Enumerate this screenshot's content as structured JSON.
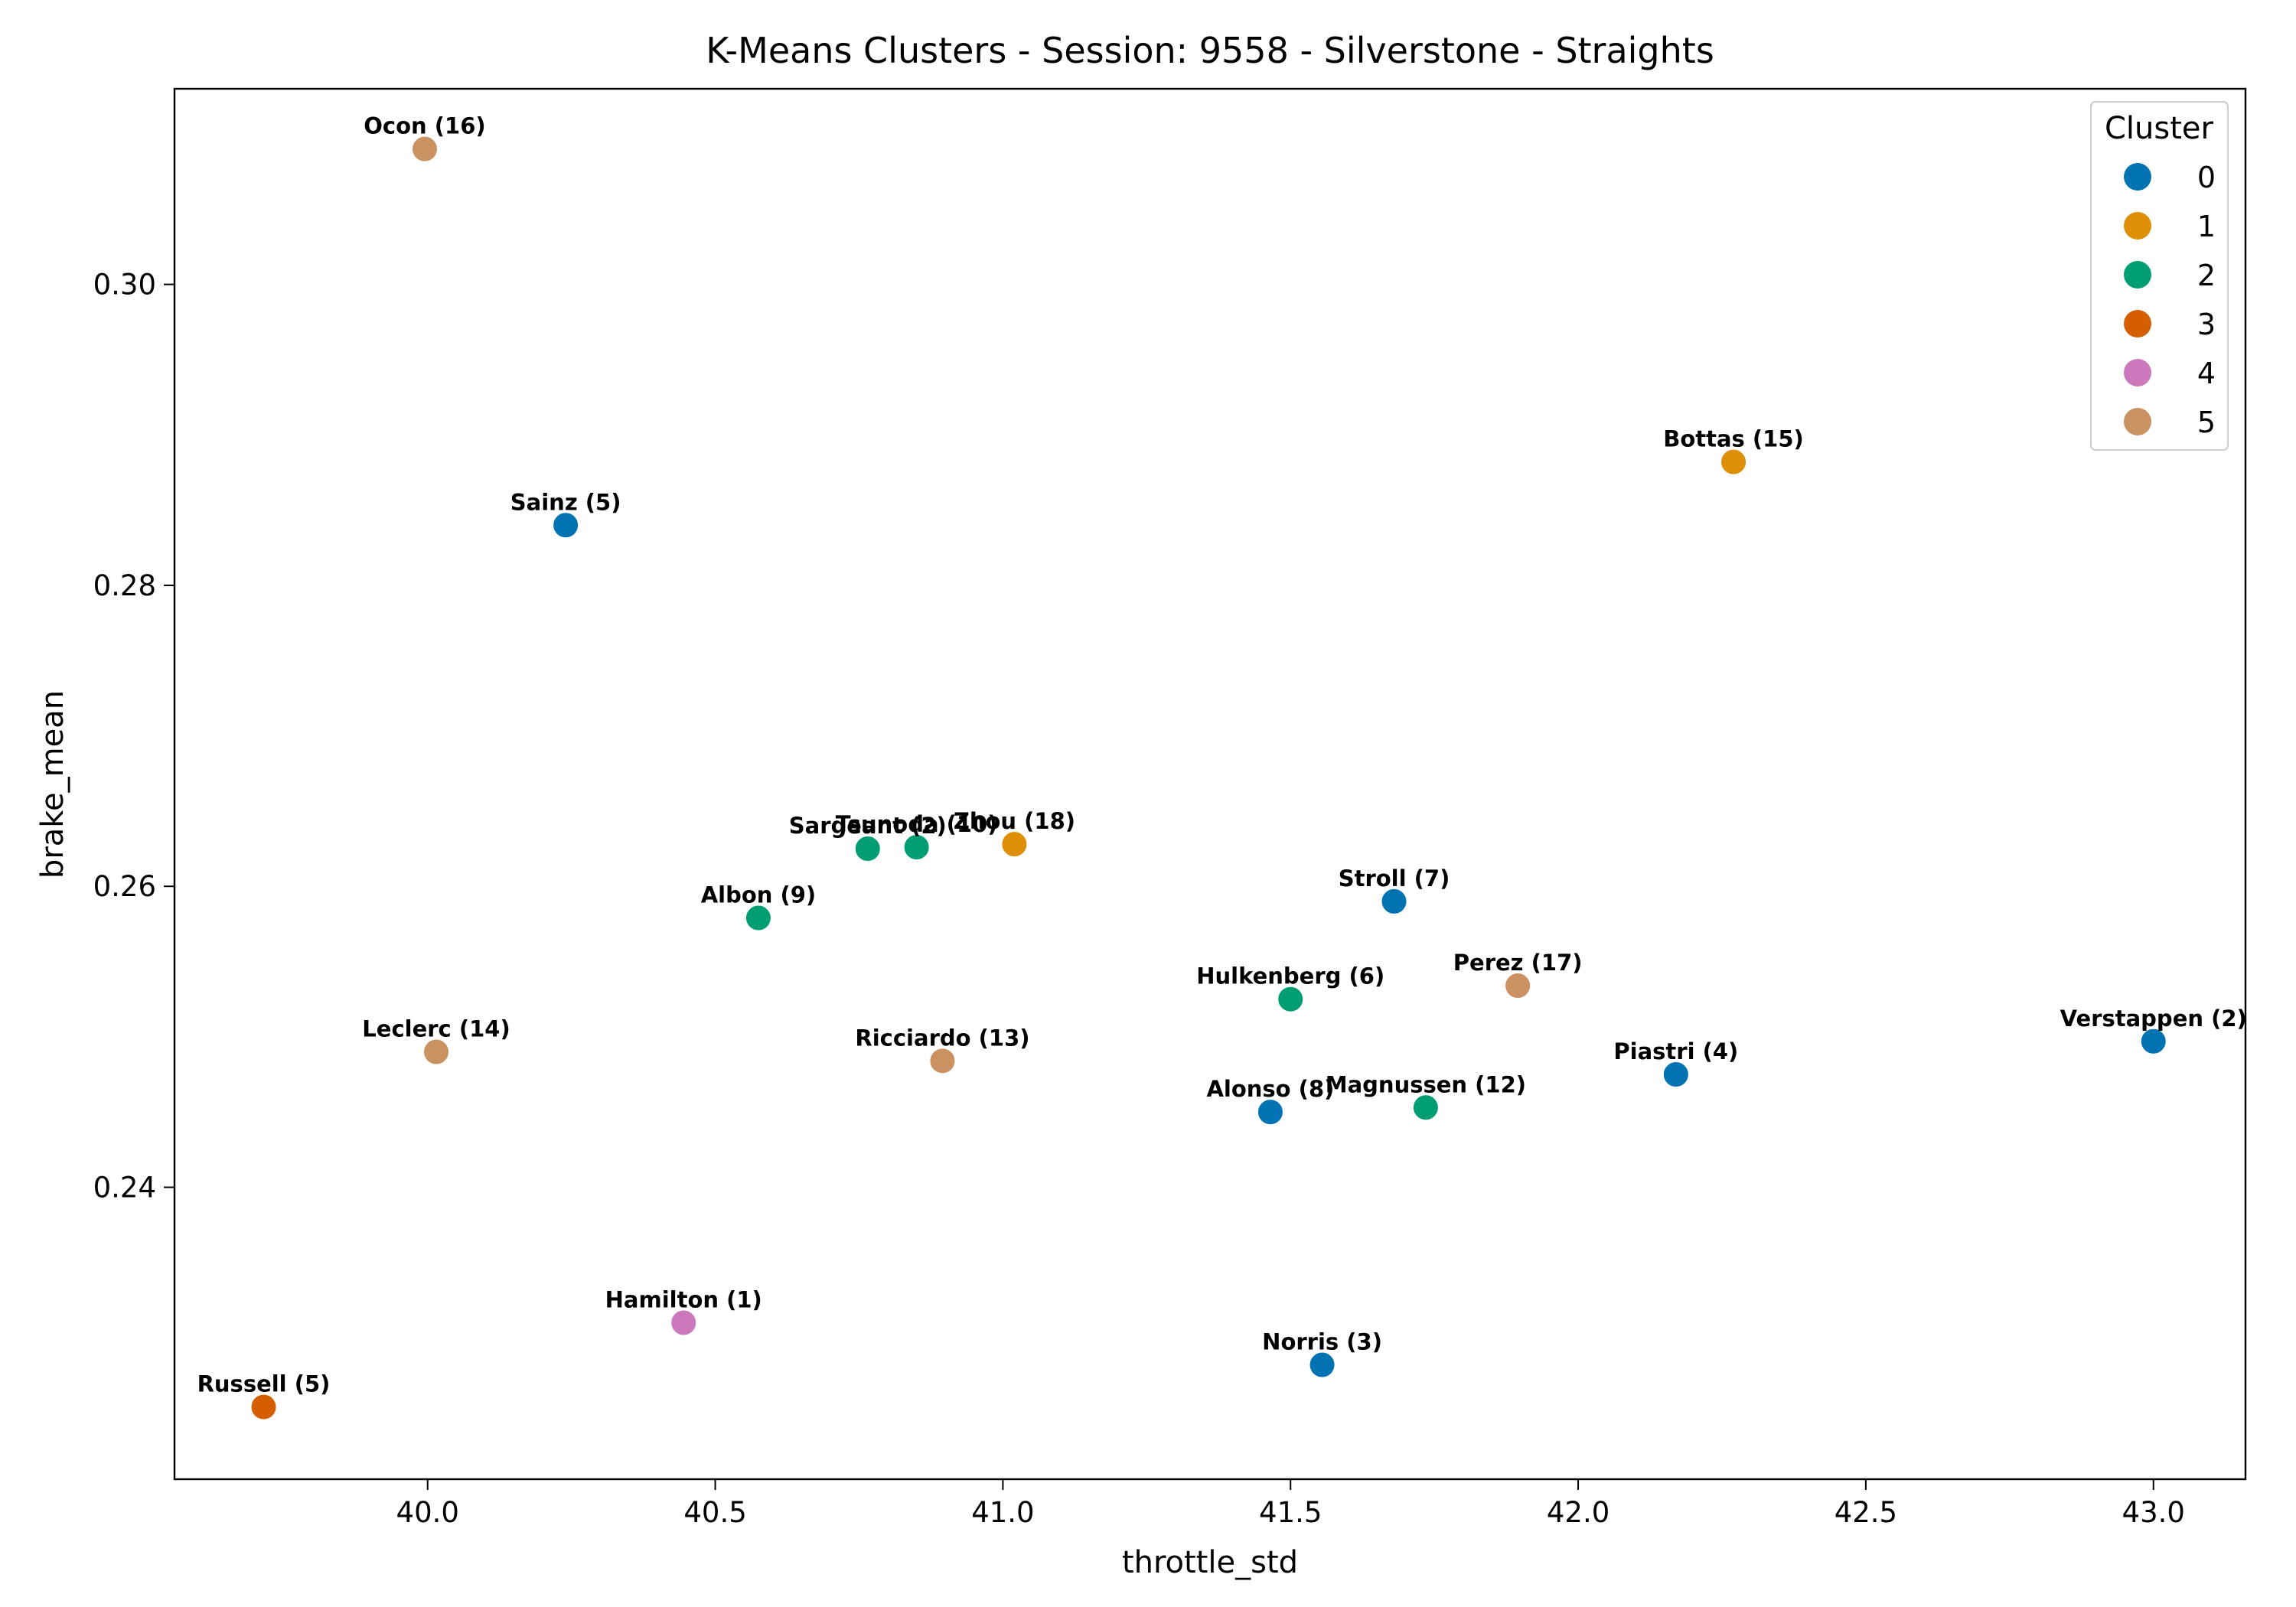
{
  "chart_data": {
    "type": "scatter",
    "title": "K-Means Clusters - Session: 9558 - Silverstone - Straights",
    "xlabel": "throttle_std",
    "ylabel": "brake_mean",
    "xlim": [
      39.56,
      43.16
    ],
    "ylim": [
      0.2206,
      0.313
    ],
    "x_ticks": [
      40.0,
      40.5,
      41.0,
      41.5,
      42.0,
      42.5,
      43.0
    ],
    "x_tick_labels": [
      "40.0",
      "40.5",
      "41.0",
      "41.5",
      "42.0",
      "42.5",
      "43.0"
    ],
    "y_ticks": [
      0.24,
      0.26,
      0.28,
      0.3
    ],
    "y_tick_labels": [
      "0.24",
      "0.26",
      "0.28",
      "0.30"
    ],
    "grid": false,
    "legend": {
      "title": "Cluster",
      "placement": "top-right",
      "entries": [
        {
          "label": "0",
          "color": "#0173b2"
        },
        {
          "label": "1",
          "color": "#de8f05"
        },
        {
          "label": "2",
          "color": "#029e73"
        },
        {
          "label": "3",
          "color": "#d55e00"
        },
        {
          "label": "4",
          "color": "#cc78bc"
        },
        {
          "label": "5",
          "color": "#ca9161"
        }
      ]
    },
    "points": [
      {
        "label": "Ocon (16)",
        "x": 39.995,
        "y": 0.309,
        "cluster": 5
      },
      {
        "label": "Sainz (5)",
        "x": 40.24,
        "y": 0.284,
        "cluster": 0
      },
      {
        "label": "Bottas (15)",
        "x": 42.27,
        "y": 0.2882,
        "cluster": 1
      },
      {
        "label": "Sargeant (2)",
        "x": 40.765,
        "y": 0.2625,
        "cluster": 2
      },
      {
        "label": "Tsunoda (10)",
        "x": 40.85,
        "y": 0.2626,
        "cluster": 2
      },
      {
        "label": "Zhou (18)",
        "x": 41.02,
        "y": 0.2628,
        "cluster": 1
      },
      {
        "label": "Albon (9)",
        "x": 40.575,
        "y": 0.2579,
        "cluster": 2
      },
      {
        "label": "Stroll (7)",
        "x": 41.68,
        "y": 0.259,
        "cluster": 0
      },
      {
        "label": "Hulkenberg (6)",
        "x": 41.5,
        "y": 0.2525,
        "cluster": 2
      },
      {
        "label": "Perez (17)",
        "x": 41.895,
        "y": 0.2534,
        "cluster": 5
      },
      {
        "label": "Leclerc (14)",
        "x": 40.015,
        "y": 0.249,
        "cluster": 5
      },
      {
        "label": "Ricciardo (13)",
        "x": 40.895,
        "y": 0.2484,
        "cluster": 5
      },
      {
        "label": "Verstappen (2)",
        "x": 43.0,
        "y": 0.2497,
        "cluster": 0
      },
      {
        "label": "Piastri (4)",
        "x": 42.17,
        "y": 0.2475,
        "cluster": 0
      },
      {
        "label": "Alonso (8)",
        "x": 41.465,
        "y": 0.245,
        "cluster": 0
      },
      {
        "label": "Magnussen (12)",
        "x": 41.735,
        "y": 0.2453,
        "cluster": 2
      },
      {
        "label": "Hamilton (1)",
        "x": 40.445,
        "y": 0.231,
        "cluster": 4
      },
      {
        "label": "Norris (3)",
        "x": 41.555,
        "y": 0.2282,
        "cluster": 0
      },
      {
        "label": "Russell (5)",
        "x": 39.715,
        "y": 0.2254,
        "cluster": 3
      }
    ]
  }
}
